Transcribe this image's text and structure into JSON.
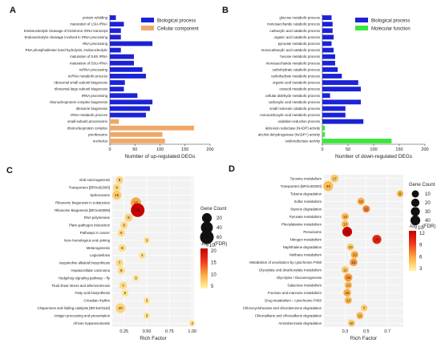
{
  "chart_data": [
    {
      "panel": "A",
      "type": "bar",
      "orientation": "horizontal",
      "xlabel": "Number of up-regulated DEGs",
      "xlim": [
        0,
        200
      ],
      "xticks": [
        0,
        50,
        100,
        150,
        200
      ],
      "legend": "top-right",
      "series": [
        {
          "name": "Biological process",
          "color": "#1c22d6"
        },
        {
          "name": "Cellular component",
          "color": "#f0a868"
        }
      ],
      "categories": [
        "protein refolding",
        "maturation of LSU-rRNA",
        "Endonucleolytic cleavage of tricistronic rRNA transcript",
        "Endonucleolytic cleavage involved in rRNA processing",
        "RNA processing",
        "RNA phosphodiester bond hydrolysis, endonucleolytic",
        "maturation of 5.8S rRNA",
        "maturation of SSU-rRNA",
        "ncRNA processing",
        "ncRNA metabolic process",
        "ribosomal small subunit biogenesis",
        "ribosomal large subunit biogenesis",
        "rRNA processing",
        "ribonucleoprotein complex biogenesis",
        "ribosome biogenesis",
        "rRNA metabolic process",
        "small-subunit processome",
        "ribonucleoprotein complex",
        "preribosome",
        "nucleolus"
      ],
      "values": [
        12,
        28,
        22,
        22,
        85,
        22,
        48,
        48,
        65,
        72,
        30,
        28,
        55,
        85,
        80,
        72,
        18,
        168,
        105,
        110
      ],
      "series_index": [
        0,
        0,
        0,
        0,
        0,
        0,
        0,
        0,
        0,
        0,
        0,
        0,
        0,
        0,
        0,
        0,
        1,
        1,
        1,
        1
      ]
    },
    {
      "panel": "B",
      "type": "bar",
      "orientation": "horizontal",
      "xlabel": "Number of down-regulated DEGs",
      "xlim": [
        0,
        200
      ],
      "xticks": [
        0,
        50,
        100,
        150,
        200
      ],
      "legend": "top-right",
      "series": [
        {
          "name": "Biological process",
          "color": "#1c22d6"
        },
        {
          "name": "Molecular function",
          "color": "#3ce63c"
        }
      ],
      "categories": [
        "glucose metabolic process",
        "monosaccharide catabolic process",
        "carboxylic acid catabolic process",
        "organic acid catabolic process",
        "pyruvate metabolic process",
        "monocarboxylic acid catabolic process",
        "hexose metabolic process",
        "monosaccharide metabolic process",
        "carbohydrate catabolic process",
        "carbohydrate metabolic process",
        "organic acid metabolic process",
        "oxoacid metabolic process",
        "cellular aldehyde metabolic process",
        "carboxylic acid metabolic process",
        "small molecule catabolic process",
        "monocarboxylic acid metabolic process",
        "oxidation-reduction process",
        "aldo-keto reductase (NADP) activity",
        "alcohol dehydrogenase (NADP+) activity",
        "oxidoreductase activity"
      ],
      "values": [
        18,
        20,
        20,
        22,
        18,
        22,
        25,
        25,
        30,
        38,
        70,
        75,
        15,
        75,
        45,
        45,
        80,
        5,
        5,
        135
      ],
      "series_index": [
        0,
        0,
        0,
        0,
        0,
        0,
        0,
        0,
        0,
        0,
        0,
        0,
        0,
        0,
        0,
        0,
        0,
        1,
        1,
        1
      ]
    },
    {
      "panel": "C",
      "type": "scatter",
      "xlabel": "Rich Factor",
      "xlim": [
        0.12,
        1.02
      ],
      "xticks": [
        0.25,
        0.5,
        0.75,
        1.0
      ],
      "xticklabels": [
        "0.25",
        "0.50",
        "0.75",
        "1.00"
      ],
      "size_legend_title": "Gene Count",
      "size_legend": [
        20,
        40,
        60
      ],
      "color_legend_title": "-log10(FDR)",
      "color_legend_ticks": [
        20,
        15,
        10,
        5
      ],
      "points": [
        {
          "term": "Viral carcinogenesis",
          "x": 0.2,
          "count": 6,
          "fdr": 4
        },
        {
          "term": "Transporters [BR:ko02000]",
          "x": 0.17,
          "count": 9,
          "fdr": 3
        },
        {
          "term": "Spliceosome",
          "x": 0.17,
          "count": 15,
          "fdr": 5
        },
        {
          "term": "Ribosome biogenesis in eukaryotes",
          "x": 0.38,
          "count": 25,
          "fdr": 9
        },
        {
          "term": "Ribosome Biogenesis [BR:ko03009]",
          "x": 0.4,
          "count": 60,
          "fdr": 25
        },
        {
          "term": "RNA polymerase",
          "x": 0.3,
          "count": 9,
          "fdr": 4
        },
        {
          "term": "Plant–pathogen interaction",
          "x": 0.25,
          "count": 6,
          "fdr": 3
        },
        {
          "term": "Pathways in cancer",
          "x": 0.22,
          "count": 6,
          "fdr": 3
        },
        {
          "term": "Non–homologous end–joining",
          "x": 0.5,
          "count": 3,
          "fdr": 2
        },
        {
          "term": "Metanogenesis",
          "x": 0.23,
          "count": 6,
          "fdr": 3
        },
        {
          "term": "Legionellosis",
          "x": 0.45,
          "count": 4,
          "fdr": 2
        },
        {
          "term": "Isoquinoline alkaloid biosynthesis",
          "x": 0.2,
          "count": 7,
          "fdr": 3
        },
        {
          "term": "Hepatocellular carcinoma",
          "x": 0.22,
          "count": 6,
          "fdr": 3
        },
        {
          "term": "Hedgehog signaling pathway – fly",
          "x": 0.38,
          "count": 3,
          "fdr": 2
        },
        {
          "term": "Fluid shear stress and atherosclerosis",
          "x": 0.24,
          "count": 7,
          "fdr": 3
        },
        {
          "term": "Fatty acid biosynthesis",
          "x": 0.26,
          "count": 5,
          "fdr": 2
        },
        {
          "term": "Circadian rhythm",
          "x": 0.5,
          "count": 3,
          "fdr": 2
        },
        {
          "term": "Chaperones and folding catalysts [BR:ko03110]",
          "x": 0.21,
          "count": 20,
          "fdr": 4
        },
        {
          "term": "Antigen processing and presentation",
          "x": 0.5,
          "count": 3,
          "fdr": 2
        },
        {
          "term": "African trypanosomiasis",
          "x": 1.0,
          "count": 2,
          "fdr": 2
        }
      ]
    },
    {
      "panel": "D",
      "type": "scatter",
      "xlabel": "Rich Factor",
      "xlim": [
        0.1,
        0.85
      ],
      "xticks": [
        0.3,
        0.5,
        0.7
      ],
      "xticklabels": [
        "0.3",
        "0.5",
        "0.7"
      ],
      "size_legend_title": "Gene Count",
      "size_legend": [
        10,
        20,
        30,
        40
      ],
      "color_legend_title": "-log10(FDR)",
      "color_legend_ticks": [
        12,
        9,
        6,
        3
      ],
      "points": [
        {
          "term": "Tyrosine metabolism",
          "x": 0.2,
          "count": 17,
          "fdr": 3
        },
        {
          "term": "Transporters [BR:ko02000]",
          "x": 0.14,
          "count": 43,
          "fdr": 4
        },
        {
          "term": "Toluene degradation",
          "x": 0.82,
          "count": 6,
          "fdr": 5
        },
        {
          "term": "Sulfur metabolism",
          "x": 0.45,
          "count": 12,
          "fdr": 5
        },
        {
          "term": "Styrene degradation",
          "x": 0.5,
          "count": 11,
          "fdr": 7
        },
        {
          "term": "Pyruvate metabolism",
          "x": 0.3,
          "count": 13,
          "fdr": 4
        },
        {
          "term": "Phenylalanine metabolism",
          "x": 0.3,
          "count": 13,
          "fdr": 4
        },
        {
          "term": "Peroxisome",
          "x": 0.32,
          "count": 40,
          "fdr": 15
        },
        {
          "term": "Nitrogen metabolism",
          "x": 0.6,
          "count": 29,
          "fdr": 12
        },
        {
          "term": "Naphthalene degradation",
          "x": 0.35,
          "count": 10,
          "fdr": 3
        },
        {
          "term": "Methane metabolism",
          "x": 0.39,
          "count": 13,
          "fdr": 5
        },
        {
          "term": "Metabolism of xenobiotics by cytochrome P450",
          "x": 0.38,
          "count": 15,
          "fdr": 6
        },
        {
          "term": "Glyoxylate and dicarboxylate metabolism",
          "x": 0.3,
          "count": 12,
          "fdr": 3
        },
        {
          "term": "Glycolysis / Gluconeogenesis",
          "x": 0.33,
          "count": 19,
          "fdr": 6
        },
        {
          "term": "Galactose metabolism",
          "x": 0.33,
          "count": 13,
          "fdr": 4
        },
        {
          "term": "Fructose and mannose metabolism",
          "x": 0.32,
          "count": 15,
          "fdr": 5
        },
        {
          "term": "Drug metabolism – cytochrome P450",
          "x": 0.33,
          "count": 12,
          "fdr": 4
        },
        {
          "term": "Chlorocyclohexane and chlorobenzene degradation",
          "x": 0.48,
          "count": 7,
          "fdr": 3
        },
        {
          "term": "Chloroalkane and chloroalkene degradation",
          "x": 0.44,
          "count": 11,
          "fdr": 4
        },
        {
          "term": "Aminobenzoate degradation",
          "x": 0.36,
          "count": 10,
          "fdr": 3
        }
      ]
    }
  ]
}
